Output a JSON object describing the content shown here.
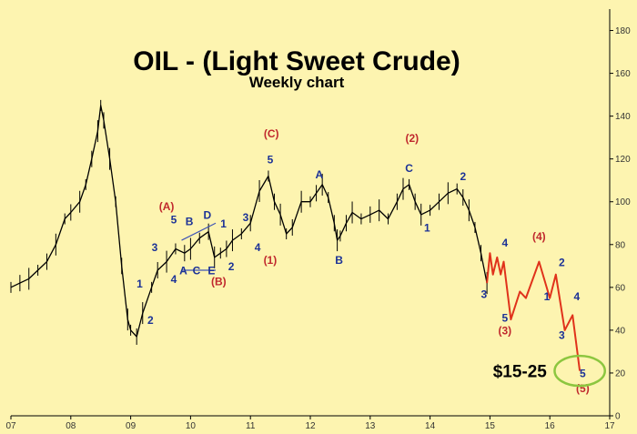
{
  "chart_data": {
    "type": "line",
    "title": "OIL  - (Light Sweet Crude)",
    "subtitle": "Weekly chart",
    "x_ticks": [
      "07",
      "08",
      "09",
      "10",
      "11",
      "12",
      "13",
      "14",
      "15",
      "16",
      "17"
    ],
    "y_ticks": [
      0,
      20,
      40,
      60,
      80,
      100,
      120,
      140,
      160,
      180
    ],
    "ylim": [
      0,
      190
    ],
    "xlim": [
      2007.0,
      2017.0
    ],
    "y_axis_side": "right",
    "grid": false,
    "series": [
      {
        "kind": "price_history",
        "color": "#000000",
        "points": [
          [
            2007.0,
            60
          ],
          [
            2007.15,
            62
          ],
          [
            2007.3,
            64
          ],
          [
            2007.45,
            68
          ],
          [
            2007.6,
            72
          ],
          [
            2007.75,
            80
          ],
          [
            2007.9,
            92
          ],
          [
            2008.0,
            95
          ],
          [
            2008.15,
            100
          ],
          [
            2008.25,
            108
          ],
          [
            2008.35,
            120
          ],
          [
            2008.45,
            133
          ],
          [
            2008.5,
            145
          ],
          [
            2008.55,
            138
          ],
          [
            2008.65,
            120
          ],
          [
            2008.75,
            100
          ],
          [
            2008.85,
            70
          ],
          [
            2008.95,
            45
          ],
          [
            2009.0,
            40
          ],
          [
            2009.1,
            37
          ],
          [
            2009.2,
            48
          ],
          [
            2009.35,
            60
          ],
          [
            2009.45,
            68
          ],
          [
            2009.6,
            72
          ],
          [
            2009.75,
            78
          ],
          [
            2009.9,
            76
          ],
          [
            2010.0,
            78
          ],
          [
            2010.15,
            83
          ],
          [
            2010.3,
            86
          ],
          [
            2010.4,
            74
          ],
          [
            2010.5,
            76
          ],
          [
            2010.6,
            78
          ],
          [
            2010.7,
            82
          ],
          [
            2010.85,
            85
          ],
          [
            2011.0,
            90
          ],
          [
            2011.15,
            105
          ],
          [
            2011.3,
            112
          ],
          [
            2011.4,
            100
          ],
          [
            2011.5,
            94
          ],
          [
            2011.6,
            85
          ],
          [
            2011.7,
            88
          ],
          [
            2011.85,
            100
          ],
          [
            2012.0,
            100
          ],
          [
            2012.1,
            104
          ],
          [
            2012.2,
            108
          ],
          [
            2012.3,
            102
          ],
          [
            2012.4,
            90
          ],
          [
            2012.45,
            82
          ],
          [
            2012.5,
            84
          ],
          [
            2012.6,
            90
          ],
          [
            2012.7,
            95
          ],
          [
            2012.85,
            92
          ],
          [
            2013.0,
            94
          ],
          [
            2013.15,
            96
          ],
          [
            2013.3,
            92
          ],
          [
            2013.45,
            100
          ],
          [
            2013.55,
            106
          ],
          [
            2013.65,
            108
          ],
          [
            2013.75,
            100
          ],
          [
            2013.85,
            94
          ],
          [
            2014.0,
            96
          ],
          [
            2014.15,
            100
          ],
          [
            2014.3,
            104
          ],
          [
            2014.45,
            106
          ],
          [
            2014.55,
            102
          ],
          [
            2014.65,
            96
          ],
          [
            2014.75,
            88
          ],
          [
            2014.85,
            76
          ],
          [
            2014.95,
            62
          ]
        ]
      },
      {
        "kind": "projection",
        "color": "#e0321b",
        "points": [
          [
            2014.95,
            62
          ],
          [
            2015.0,
            76
          ],
          [
            2015.05,
            66
          ],
          [
            2015.12,
            74
          ],
          [
            2015.18,
            66
          ],
          [
            2015.23,
            72
          ],
          [
            2015.35,
            45
          ],
          [
            2015.5,
            58
          ],
          [
            2015.6,
            55
          ],
          [
            2015.82,
            72
          ],
          [
            2016.0,
            55
          ],
          [
            2016.1,
            66
          ],
          [
            2016.25,
            40
          ],
          [
            2016.38,
            47
          ],
          [
            2016.5,
            21
          ]
        ]
      }
    ],
    "triangle_lines": [
      [
        [
          2009.85,
          68
        ],
        [
          2010.42,
          68
        ]
      ],
      [
        [
          2009.85,
          82
        ],
        [
          2010.42,
          90
        ]
      ]
    ],
    "wave_labels": [
      {
        "text": "(A)",
        "color": "#c0282d",
        "x": 2009.6,
        "y": 96
      },
      {
        "text": "5",
        "color": "#1c3296",
        "x": 2009.72,
        "y": 90
      },
      {
        "text": "B",
        "color": "#1c3296",
        "x": 2009.98,
        "y": 89
      },
      {
        "text": "D",
        "color": "#1c3296",
        "x": 2010.28,
        "y": 92
      },
      {
        "text": "1",
        "color": "#1c3296",
        "x": 2010.55,
        "y": 88
      },
      {
        "text": "3",
        "color": "#1c3296",
        "x": 2009.4,
        "y": 77
      },
      {
        "text": "3",
        "color": "#1c3296",
        "x": 2010.92,
        "y": 91
      },
      {
        "text": "4",
        "color": "#1c3296",
        "x": 2011.12,
        "y": 77
      },
      {
        "text": "4",
        "color": "#1c3296",
        "x": 2009.72,
        "y": 62
      },
      {
        "text": "1",
        "color": "#1c3296",
        "x": 2009.15,
        "y": 60
      },
      {
        "text": "2",
        "color": "#1c3296",
        "x": 2009.33,
        "y": 43
      },
      {
        "text": "A",
        "color": "#1c3296",
        "x": 2009.88,
        "y": 66
      },
      {
        "text": "C",
        "color": "#1c3296",
        "x": 2010.1,
        "y": 66
      },
      {
        "text": "E",
        "color": "#1c3296",
        "x": 2010.35,
        "y": 66
      },
      {
        "text": "(B)",
        "color": "#c0282d",
        "x": 2010.47,
        "y": 61
      },
      {
        "text": "2",
        "color": "#1c3296",
        "x": 2010.68,
        "y": 68
      },
      {
        "text": "(C)",
        "color": "#c0282d",
        "x": 2011.35,
        "y": 130
      },
      {
        "text": "5",
        "color": "#1c3296",
        "x": 2011.33,
        "y": 118
      },
      {
        "text": "(1)",
        "color": "#c0282d",
        "x": 2011.33,
        "y": 71
      },
      {
        "text": "A",
        "color": "#1c3296",
        "x": 2012.15,
        "y": 111
      },
      {
        "text": "B",
        "color": "#1c3296",
        "x": 2012.48,
        "y": 71
      },
      {
        "text": "(2)",
        "color": "#c0282d",
        "x": 2013.7,
        "y": 128
      },
      {
        "text": "C",
        "color": "#1c3296",
        "x": 2013.65,
        "y": 114
      },
      {
        "text": "2",
        "color": "#1c3296",
        "x": 2014.55,
        "y": 110
      },
      {
        "text": "1",
        "color": "#1c3296",
        "x": 2013.95,
        "y": 86
      },
      {
        "text": "3",
        "color": "#1c3296",
        "x": 2014.9,
        "y": 55
      },
      {
        "text": "4",
        "color": "#1c3296",
        "x": 2015.25,
        "y": 79
      },
      {
        "text": "5",
        "color": "#1c3296",
        "x": 2015.25,
        "y": 44
      },
      {
        "text": "(3)",
        "color": "#c0282d",
        "x": 2015.25,
        "y": 38
      },
      {
        "text": "(4)",
        "color": "#c0282d",
        "x": 2015.82,
        "y": 82
      },
      {
        "text": "2",
        "color": "#1c3296",
        "x": 2016.2,
        "y": 70
      },
      {
        "text": "1",
        "color": "#1c3296",
        "x": 2015.95,
        "y": 54
      },
      {
        "text": "4",
        "color": "#1c3296",
        "x": 2016.45,
        "y": 54
      },
      {
        "text": "3",
        "color": "#1c3296",
        "x": 2016.2,
        "y": 36
      },
      {
        "text": "5",
        "color": "#1c3296",
        "x": 2016.55,
        "y": 18
      },
      {
        "text": "(5)",
        "color": "#c0282d",
        "x": 2016.55,
        "y": 11
      }
    ],
    "target_label": {
      "text": "$15-25",
      "x": 2015.5,
      "y": 21
    },
    "target_circle": {
      "x": 2016.5,
      "y": 21,
      "rx_years": 0.42,
      "ry_value": 7,
      "color": "#8cc63f"
    }
  }
}
